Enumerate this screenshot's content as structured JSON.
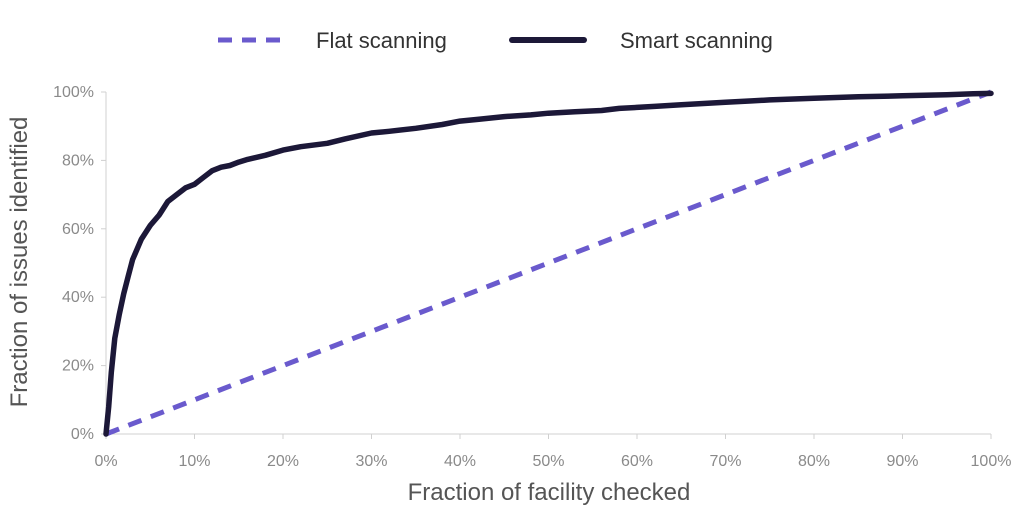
{
  "chart_data": {
    "type": "line",
    "title": "",
    "xlabel": "Fraction of facility checked",
    "ylabel": "Fraction of issues identified",
    "xlim": [
      0,
      100
    ],
    "ylim": [
      0,
      100
    ],
    "x_ticks": [
      "0%",
      "10%",
      "20%",
      "30%",
      "40%",
      "50%",
      "60%",
      "70%",
      "80%",
      "90%",
      "100%"
    ],
    "y_ticks": [
      "0%",
      "20%",
      "40%",
      "60%",
      "80%",
      "100%"
    ],
    "grid": false,
    "legend_position": "top-center",
    "series": [
      {
        "name": "Flat scanning",
        "style": "dashed",
        "color": "#6a5acd",
        "x": [
          0,
          100
        ],
        "y": [
          0,
          100
        ]
      },
      {
        "name": "Smart scanning",
        "style": "solid",
        "color": "#1c1838",
        "x": [
          0,
          0.3,
          0.6,
          1,
          1.5,
          2,
          2.5,
          3,
          4,
          5,
          6,
          7,
          8,
          9,
          10,
          11,
          12,
          13,
          14,
          15,
          16,
          18,
          20,
          22,
          25,
          27,
          30,
          32,
          35,
          38,
          40,
          42,
          45,
          48,
          50,
          53,
          56,
          58,
          60,
          62,
          65,
          70,
          73,
          75,
          80,
          85,
          90,
          95,
          98,
          100
        ],
        "y": [
          0,
          8,
          18,
          28,
          35,
          41,
          46,
          51,
          57,
          61,
          64,
          68,
          70,
          72,
          73,
          75,
          77,
          78,
          78.5,
          79.5,
          80.3,
          81.5,
          83,
          84,
          85,
          86.3,
          88,
          88.5,
          89.4,
          90.5,
          91.5,
          92,
          92.8,
          93.3,
          93.8,
          94.2,
          94.6,
          95.2,
          95.5,
          95.8,
          96.3,
          97,
          97.4,
          97.7,
          98.2,
          98.6,
          98.9,
          99.2,
          99.5,
          99.6
        ]
      }
    ]
  }
}
